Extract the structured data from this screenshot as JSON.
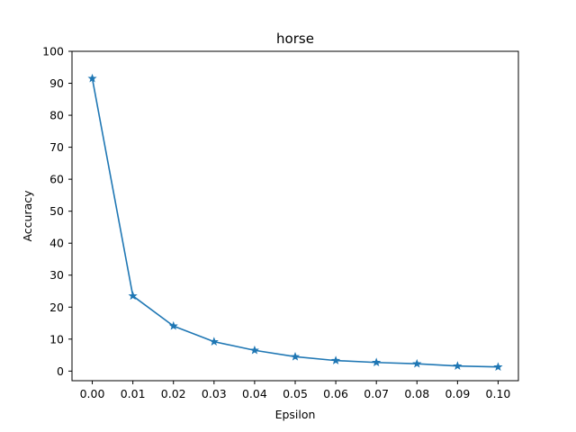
{
  "chart_data": {
    "type": "line",
    "title": "horse",
    "xlabel": "Epsilon",
    "ylabel": "Accuracy",
    "x": [
      0.0,
      0.01,
      0.02,
      0.03,
      0.04,
      0.05,
      0.06,
      0.07,
      0.08,
      0.09,
      0.1
    ],
    "x_tick_labels": [
      "0.00",
      "0.01",
      "0.02",
      "0.03",
      "0.04",
      "0.05",
      "0.06",
      "0.07",
      "0.08",
      "0.09",
      "0.10"
    ],
    "y_tick_labels": [
      "0",
      "10",
      "20",
      "30",
      "40",
      "50",
      "60",
      "70",
      "80",
      "90",
      "100"
    ],
    "xlim": [
      -0.005,
      0.105
    ],
    "ylim": [
      -3,
      100
    ],
    "grid": false,
    "series": [
      {
        "color": "#1f77b4",
        "marker": "star",
        "values": [
          91.5,
          23.5,
          14.1,
          9.2,
          6.5,
          4.5,
          3.3,
          2.7,
          2.3,
          1.6,
          1.3
        ]
      }
    ]
  }
}
